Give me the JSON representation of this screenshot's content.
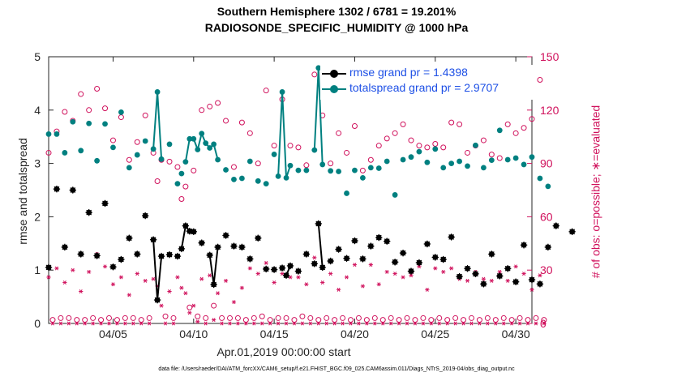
{
  "titles": {
    "line1": "Southern Hemisphere 1302 / 6781 = 19.201%",
    "line2": "RADIOSONDE_SPECIFIC_HUMIDITY @ 1000 hPa"
  },
  "axes": {
    "xlabel": "Apr.01,2019 00:00:00 start",
    "ylabel_left": "rmse and totalspread",
    "ylabel_right": "# of obs: o=possible; ∗=evaluated"
  },
  "footer": "data file: /Users/raeder/DAI/ATM_forcXX/CAM6_setup/f.e21.FHIST_BGC.f09_025.CAM6assim.011/Diags_NTrS_2019-04/obs_diag_output.nc",
  "legend": {
    "rmse": "rmse grand pr = 1.4398",
    "spread": "totalspread grand pr = 2.9707"
  },
  "colors": {
    "rmse": "#000000",
    "spread": "#008080",
    "obs": "#d0115c",
    "legend_text": "#1e50e6"
  },
  "chart_data": {
    "type": "line",
    "x_start": 1.0,
    "x_step": 0.25,
    "xlim": [
      1,
      31
    ],
    "ylim_left": [
      0,
      5
    ],
    "ylim_right": [
      0,
      150
    ],
    "xticks": [
      5,
      10,
      15,
      20,
      25,
      30
    ],
    "xtick_labels": [
      "04/05",
      "04/10",
      "04/15",
      "04/20",
      "04/25",
      "04/30"
    ],
    "yticks_left": [
      0,
      1,
      2,
      3,
      4,
      5
    ],
    "yticks_right": [
      0,
      30,
      60,
      90,
      120,
      150
    ],
    "series": [
      {
        "name": "rmse",
        "values": [
          1.05,
          null,
          2.52,
          null,
          1.43,
          null,
          2.5,
          null,
          1.3,
          null,
          2.08,
          null,
          1.27,
          null,
          2.25,
          null,
          1.06,
          null,
          1.2,
          null,
          1.6,
          null,
          1.3,
          null,
          2.02,
          null,
          1.57,
          0.44,
          1.26,
          null,
          1.29,
          null,
          1.26,
          1.4,
          1.83,
          1.73,
          1.72,
          null,
          1.51,
          null,
          1.28,
          0.73,
          1.43,
          null,
          1.65,
          null,
          1.45,
          null,
          1.43,
          null,
          1.21,
          null,
          1.6,
          null,
          1.02,
          null,
          1.01,
          null,
          1.04,
          0.9,
          1.08,
          null,
          0.98,
          null,
          1.3,
          null,
          1.12,
          1.87,
          1.05,
          null,
          1.17,
          null,
          1.39,
          null,
          1.22,
          null,
          1.55,
          null,
          1.21,
          null,
          1.45,
          null,
          1.61,
          null,
          1.54,
          null,
          1.15,
          null,
          1.32,
          null,
          0.98,
          null,
          1.14,
          null,
          1.49,
          null,
          1.24,
          null,
          1.2,
          null,
          1.62,
          null,
          0.88,
          null,
          1.03,
          null,
          0.93,
          null,
          0.74,
          null,
          1.3,
          null,
          0.89,
          null,
          1.03,
          null,
          0.78,
          null,
          1.47,
          null,
          0.82,
          null,
          0.74,
          null,
          1.43,
          null,
          1.83,
          null,
          null,
          null,
          1.72,
          null
        ],
        "connected": [
          [
            26,
            28
          ],
          [
            33,
            37
          ],
          [
            40,
            42
          ],
          [
            59,
            60
          ],
          [
            67,
            69
          ]
        ]
      },
      {
        "name": "totalspread",
        "values": [
          3.55,
          null,
          3.55,
          null,
          3.2,
          null,
          3.78,
          null,
          3.24,
          null,
          3.75,
          null,
          3.05,
          null,
          3.74,
          null,
          3.3,
          null,
          3.96,
          null,
          2.92,
          null,
          3.16,
          null,
          3.42,
          null,
          3.27,
          4.34,
          3.08,
          null,
          3.36,
          null,
          2.62,
          2.81,
          3.03,
          3.46,
          3.46,
          3.26,
          3.56,
          3.38,
          3.29,
          3.36,
          3.07,
          null,
          2.88,
          null,
          2.7,
          null,
          2.72,
          null,
          3.04,
          null,
          2.67,
          null,
          2.62,
          null,
          3.17,
          2.76,
          4.34,
          2.73,
          2.96,
          null,
          2.87,
          null,
          2.87,
          null,
          3.25,
          4.79,
          2.98,
          null,
          2.86,
          null,
          2.85,
          null,
          2.44,
          null,
          2.87,
          null,
          2.73,
          null,
          2.92,
          null,
          2.91,
          null,
          3.04,
          null,
          2.41,
          null,
          3.07,
          null,
          3.12,
          null,
          3.22,
          null,
          3.02,
          null,
          3.27,
          null,
          2.92,
          null,
          3.0,
          null,
          3.04,
          null,
          2.95,
          null,
          3.34,
          null,
          2.92,
          null,
          3.06,
          null,
          3.62,
          null,
          3.07,
          null,
          3.1,
          null,
          2.98,
          null,
          3.12,
          null,
          2.72,
          null,
          2.57,
          null,
          null,
          null,
          null,
          null
        ],
        "connected": [
          [
            26,
            28
          ],
          [
            34,
            43
          ],
          [
            57,
            60
          ],
          [
            66,
            69
          ]
        ]
      },
      {
        "name": "possible",
        "axis": "right",
        "values": [
          96,
          2,
          108,
          3,
          119,
          3,
          114,
          2,
          129,
          2,
          120,
          3,
          132,
          2,
          121,
          3,
          103,
          2,
          116,
          3,
          92,
          3,
          102,
          2,
          117,
          3,
          96,
          80,
          92,
          4,
          91,
          3,
          88,
          70,
          77,
          9,
          86,
          4,
          120,
          3,
          122,
          10,
          124,
          3,
          114,
          3,
          88,
          3,
          113,
          2,
          107,
          3,
          90,
          4,
          131,
          2,
          100,
          3,
          126,
          3,
          100,
          2,
          99,
          4,
          89,
          3,
          140,
          2,
          117,
          3,
          90,
          2,
          107,
          3,
          96,
          2,
          111,
          3,
          86,
          2,
          92,
          3,
          100,
          2,
          104,
          3,
          107,
          2,
          112,
          3,
          103,
          2,
          100,
          3,
          99,
          2,
          101,
          3,
          99,
          2,
          113,
          3,
          112,
          2,
          96,
          3,
          100,
          2,
          103,
          3,
          95,
          2,
          93,
          3,
          112,
          2,
          107,
          3,
          110,
          2,
          115,
          3,
          137,
          2
        ]
      },
      {
        "name": "evaluated",
        "axis": "right",
        "values": [
          26,
          0,
          31,
          0,
          23,
          0,
          30,
          0,
          18,
          0,
          29,
          0,
          39,
          0,
          32,
          0,
          22,
          0,
          26,
          0,
          16,
          0,
          28,
          0,
          24,
          0,
          25,
          21,
          10,
          0,
          18,
          0,
          26,
          20,
          17,
          6,
          10,
          1,
          25,
          0,
          27,
          2,
          17,
          0,
          24,
          0,
          12,
          0,
          20,
          0,
          31,
          0,
          28,
          0,
          34,
          0,
          23,
          0,
          28,
          0,
          26,
          0,
          26,
          0,
          22,
          0,
          37,
          0,
          23,
          0,
          28,
          0,
          19,
          0,
          26,
          0,
          33,
          0,
          21,
          0,
          33,
          0,
          22,
          0,
          29,
          0,
          28,
          0,
          26,
          0,
          27,
          0,
          32,
          0,
          19,
          0,
          31,
          0,
          29,
          0,
          31,
          0,
          25,
          0,
          24,
          0,
          29,
          0,
          25,
          0,
          24,
          0,
          29,
          0,
          24,
          0,
          32,
          0,
          28,
          0,
          19,
          0,
          27,
          0
        ]
      }
    ]
  }
}
